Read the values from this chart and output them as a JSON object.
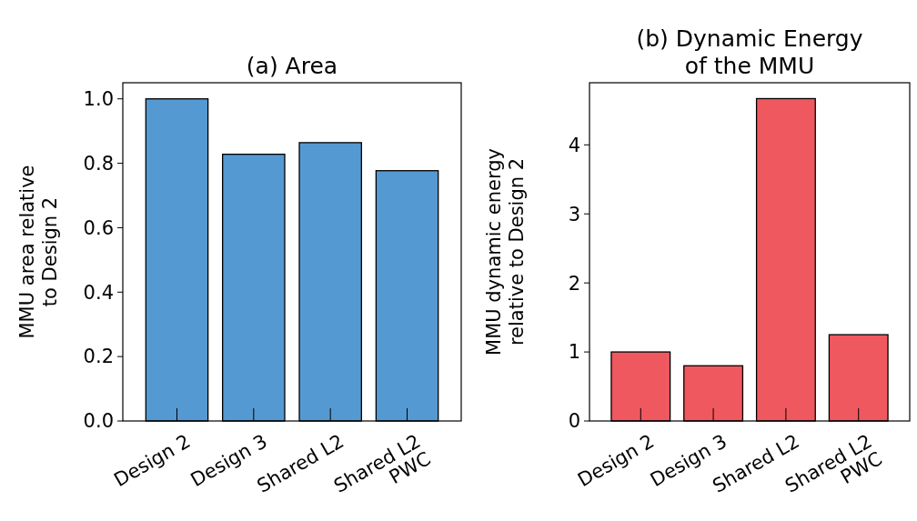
{
  "chart_data": [
    {
      "type": "bar",
      "title": "(a) Area",
      "ylabel": "MMU area relative\nto Design 2",
      "categories": [
        "Design 2",
        "Design 3",
        "Shared L2",
        "Shared L2\nPWC"
      ],
      "values": [
        1.0,
        0.828,
        0.864,
        0.777
      ],
      "color": "#5599d2",
      "ylim": [
        0,
        1.05
      ],
      "yticks": [
        {
          "value": 0,
          "label": "0.0"
        },
        0.2,
        0.4,
        0.6,
        0.8,
        {
          "value": 1,
          "label": "1.0"
        }
      ],
      "grid": false
    },
    {
      "type": "bar",
      "title": "(b) Dynamic Energy\nof the MMU",
      "ylabel": "MMU dynamic energy\nrelative to Design 2",
      "categories": [
        "Design 2",
        "Design 3",
        "Shared L2",
        "Shared L2\nPWC"
      ],
      "values": [
        1.0,
        0.8,
        4.67,
        1.25
      ],
      "color": "#f0585f",
      "ylim": [
        0,
        4.9
      ],
      "yticks": [
        0,
        1,
        2,
        3,
        4
      ],
      "grid": false
    }
  ]
}
